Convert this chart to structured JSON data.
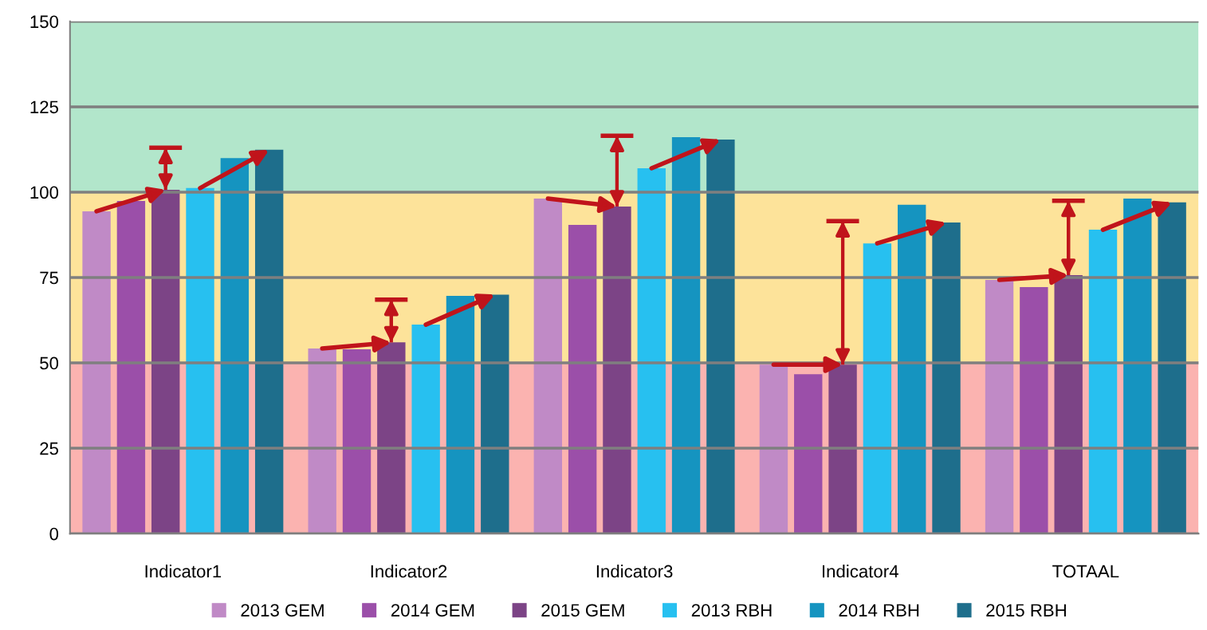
{
  "chart_data": {
    "type": "bar",
    "categories": [
      "Indicator1",
      "Indicator2",
      "Indicator3",
      "Indicator4",
      "TOTAAL"
    ],
    "series": [
      {
        "name": "2013 GEM",
        "color": "#c08ac6",
        "values": [
          94.4,
          54.2,
          98.1,
          49.5,
          74.3
        ]
      },
      {
        "name": "2014 GEM",
        "color": "#9b4fa9",
        "values": [
          97.4,
          54,
          90.4,
          46.7,
          72.2
        ]
      },
      {
        "name": "2015 GEM",
        "color": "#7c4486",
        "values": [
          100.7,
          56,
          95.8,
          49.5,
          75.7
        ],
        "errors": [
          [
            100.7,
            113
          ],
          [
            56,
            68.5
          ],
          [
            95.8,
            116.5
          ],
          [
            49.5,
            91.5
          ],
          [
            75.7,
            97.5
          ]
        ]
      },
      {
        "name": "2013 RBH",
        "color": "#27c0f0",
        "values": [
          101.2,
          61.2,
          107,
          85,
          89
        ]
      },
      {
        "name": "2014 RBH",
        "color": "#1594c0",
        "values": [
          110,
          69.6,
          116.1,
          96.3,
          98.1
        ]
      },
      {
        "name": "2015 RBH",
        "color": "#1e6e8c",
        "values": [
          112.4,
          70,
          115.4,
          91.1,
          97
        ]
      }
    ],
    "ylim": [
      0,
      150
    ],
    "yticks": [
      0,
      25,
      50,
      75,
      100,
      125,
      150
    ],
    "grid": "y",
    "legend": "bottom",
    "marker": "square",
    "bands": [
      {
        "axis": "y",
        "from": 0,
        "to": 50,
        "color": "#fbb3b0"
      },
      {
        "axis": "y",
        "from": 50,
        "to": 100,
        "color": "#fde39a"
      },
      {
        "axis": "y",
        "from": 100,
        "to": 150,
        "color": "#b2e6cb"
      }
    ]
  }
}
